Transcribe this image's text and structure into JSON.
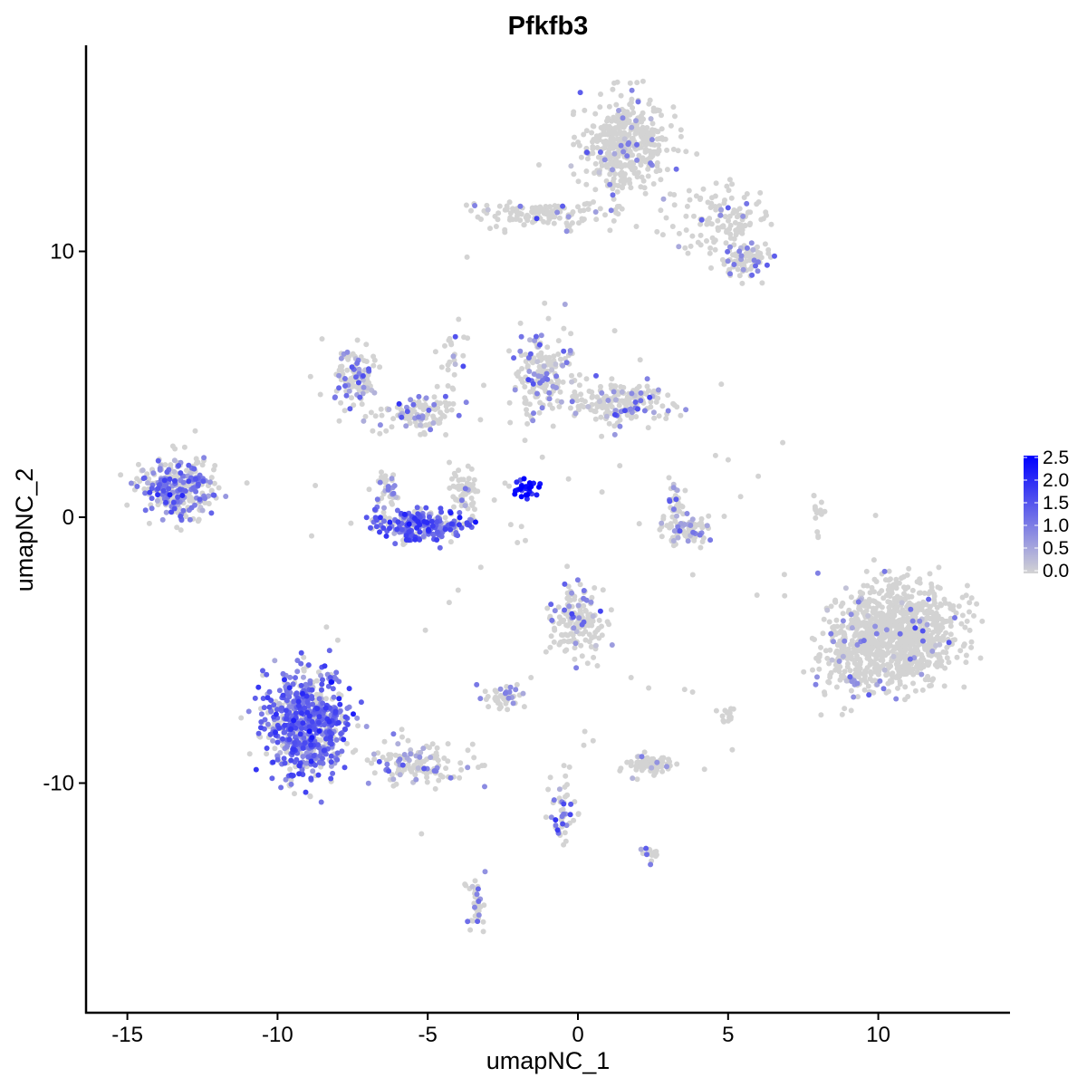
{
  "chart_data": {
    "type": "scatter",
    "title": "Pfkfb3",
    "xlabel": "umapNC_1",
    "ylabel": "umapNC_2",
    "xlim": [
      -16.4,
      14.4
    ],
    "ylim": [
      -18.6,
      17.7
    ],
    "xticks": [
      -15,
      -10,
      -5,
      0,
      5,
      10
    ],
    "yticks": [
      -10,
      0,
      10
    ],
    "grid": false,
    "color_low": "#D3D3D3",
    "color_high": "#0000FF",
    "legend": {
      "placement": "right",
      "range": [
        0,
        2.5
      ],
      "ticks": [
        "0.0",
        "0.5",
        "1.0",
        "1.5",
        "2.0",
        "2.5"
      ]
    },
    "clusters": [
      {
        "cx": 1.6,
        "cy": 14.0,
        "sx": 0.9,
        "sy": 1.1,
        "n": 420,
        "expr_frac": 0.08,
        "expr_mean": 0.8
      },
      {
        "cx": 4.6,
        "cy": 11.2,
        "sx": 1.1,
        "sy": 0.8,
        "n": 120,
        "expr_frac": 0.08,
        "expr_mean": 0.8
      },
      {
        "cx": 5.6,
        "cy": 9.7,
        "sx": 0.5,
        "sy": 0.4,
        "n": 90,
        "expr_frac": 0.2,
        "expr_mean": 0.9
      },
      {
        "cx": -1.2,
        "cy": 11.4,
        "sx": 1.4,
        "sy": 0.35,
        "n": 130,
        "expr_frac": 0.07,
        "expr_mean": 0.8
      },
      {
        "cx": -7.4,
        "cy": 5.2,
        "sx": 0.5,
        "sy": 0.7,
        "n": 110,
        "expr_frac": 0.3,
        "expr_mean": 0.9
      },
      {
        "cx": -5.2,
        "cy": 3.9,
        "sx": 0.9,
        "sy": 0.4,
        "n": 110,
        "expr_frac": 0.25,
        "expr_mean": 0.9
      },
      {
        "cx": -4.2,
        "cy": 6.0,
        "sx": 0.3,
        "sy": 1.0,
        "n": 25,
        "expr_frac": 0.2,
        "expr_mean": 0.8
      },
      {
        "cx": -1.2,
        "cy": 5.3,
        "sx": 0.6,
        "sy": 1.0,
        "n": 170,
        "expr_frac": 0.25,
        "expr_mean": 0.9
      },
      {
        "cx": 1.5,
        "cy": 4.3,
        "sx": 1.0,
        "sy": 0.45,
        "n": 180,
        "expr_frac": 0.2,
        "expr_mean": 0.9
      },
      {
        "cx": -13.3,
        "cy": 1.1,
        "sx": 0.8,
        "sy": 0.7,
        "n": 320,
        "expr_frac": 0.5,
        "expr_mean": 1.0
      },
      {
        "cx": -5.1,
        "cy": -0.3,
        "sx": 1.0,
        "sy": 0.35,
        "n": 230,
        "expr_frac": 0.7,
        "expr_mean": 1.3
      },
      {
        "cx": -3.8,
        "cy": 1.0,
        "sx": 0.3,
        "sy": 0.6,
        "n": 60,
        "expr_frac": 0.1,
        "expr_mean": 0.8
      },
      {
        "cx": -6.3,
        "cy": 0.8,
        "sx": 0.3,
        "sy": 0.6,
        "n": 40,
        "expr_frac": 0.3,
        "expr_mean": 0.9
      },
      {
        "cx": -1.8,
        "cy": 1.1,
        "sx": 0.35,
        "sy": 0.25,
        "n": 30,
        "expr_frac": 0.9,
        "expr_mean": 2.3
      },
      {
        "cx": 3.6,
        "cy": -0.5,
        "sx": 0.7,
        "sy": 0.35,
        "n": 90,
        "expr_frac": 0.3,
        "expr_mean": 0.9
      },
      {
        "cx": 3.2,
        "cy": 0.8,
        "sx": 0.2,
        "sy": 0.4,
        "n": 25,
        "expr_frac": 0.3,
        "expr_mean": 0.9
      },
      {
        "cx": 10.6,
        "cy": -4.5,
        "sx": 1.2,
        "sy": 1.2,
        "n": 900,
        "expr_frac": 0.04,
        "expr_mean": 0.8
      },
      {
        "cx": 9.0,
        "cy": -5.5,
        "sx": 0.7,
        "sy": 1.0,
        "n": 120,
        "expr_frac": 0.15,
        "expr_mean": 0.9
      },
      {
        "cx": -9.0,
        "cy": -7.8,
        "sx": 0.9,
        "sy": 1.2,
        "n": 700,
        "expr_frac": 0.7,
        "expr_mean": 1.2
      },
      {
        "cx": -5.5,
        "cy": -9.3,
        "sx": 1.1,
        "sy": 0.5,
        "n": 130,
        "expr_frac": 0.3,
        "expr_mean": 0.9
      },
      {
        "cx": 0.0,
        "cy": -3.8,
        "sx": 0.55,
        "sy": 0.8,
        "n": 160,
        "expr_frac": 0.2,
        "expr_mean": 0.9
      },
      {
        "cx": -2.5,
        "cy": -6.8,
        "sx": 0.4,
        "sy": 0.25,
        "n": 45,
        "expr_frac": 0.3,
        "expr_mean": 0.9
      },
      {
        "cx": 2.5,
        "cy": -9.3,
        "sx": 0.5,
        "sy": 0.25,
        "n": 80,
        "expr_frac": 0.05,
        "expr_mean": 0.8
      },
      {
        "cx": -0.5,
        "cy": -11.0,
        "sx": 0.25,
        "sy": 0.9,
        "n": 50,
        "expr_frac": 0.4,
        "expr_mean": 1.0
      },
      {
        "cx": -3.4,
        "cy": -14.5,
        "sx": 0.2,
        "sy": 0.6,
        "n": 35,
        "expr_frac": 0.3,
        "expr_mean": 0.9
      },
      {
        "cx": 2.4,
        "cy": -12.7,
        "sx": 0.2,
        "sy": 0.2,
        "n": 15,
        "expr_frac": 0.4,
        "expr_mean": 1.0
      },
      {
        "cx": 5.0,
        "cy": -7.4,
        "sx": 0.2,
        "sy": 0.2,
        "n": 15,
        "expr_frac": 0.0,
        "expr_mean": 0.0
      },
      {
        "cx": 8.0,
        "cy": 0.0,
        "sx": 0.15,
        "sy": 0.6,
        "n": 15,
        "expr_frac": 0.0,
        "expr_mean": 0.0
      },
      {
        "cx": 0.0,
        "cy": 0.0,
        "sx": 5.0,
        "sy": 6.0,
        "n": 60,
        "expr_frac": 0.05,
        "expr_mean": 0.8
      }
    ]
  }
}
